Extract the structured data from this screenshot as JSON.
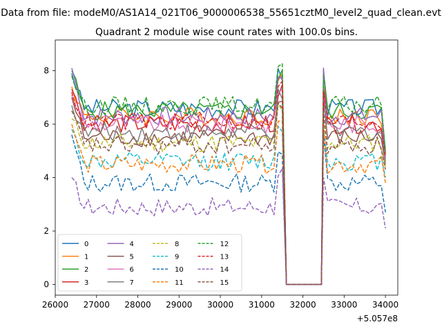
{
  "figure": {
    "suptitle": "Data from file: modeM0/AS1A14_021T06_9000006538_55651cztM0_level2_quad_clean.evt",
    "title": "Quadrant 2 module wise count rates with 100.0s bins.",
    "x_offset_label": "+5.057e8"
  },
  "chart_data": {
    "type": "line",
    "xlim": [
      26000,
      34300
    ],
    "ylim": [
      -0.4,
      9.15
    ],
    "xticks": [
      26000,
      27000,
      28000,
      29000,
      30000,
      31000,
      32000,
      33000,
      34000
    ],
    "yticks": [
      0,
      2,
      4,
      6,
      8
    ],
    "x_offset": 505700000,
    "legend_loc": "lower left",
    "legend_ncol": 4,
    "bin_width": 100,
    "segments": [
      {
        "start": 26400,
        "end": 31500
      },
      {
        "start": 32500,
        "end": 34000
      }
    ],
    "gap_x": [
      31600,
      32450
    ],
    "series": [
      {
        "name": "0",
        "color": "#1f77b4",
        "dash": "solid",
        "level": 6.6,
        "start": 7.9,
        "end": 5.0
      },
      {
        "name": "1",
        "color": "#ff7f0e",
        "dash": "solid",
        "level": 6.3,
        "start": 7.4,
        "end": 4.6
      },
      {
        "name": "2",
        "color": "#2ca02c",
        "dash": "solid",
        "level": 6.5,
        "start": 8.0,
        "end": 4.9
      },
      {
        "name": "3",
        "color": "#d62728",
        "dash": "solid",
        "level": 6.0,
        "start": 7.3,
        "end": 4.8
      },
      {
        "name": "4",
        "color": "#9467bd",
        "dash": "solid",
        "level": 6.3,
        "start": 8.1,
        "end": 4.7
      },
      {
        "name": "5",
        "color": "#8c564b",
        "dash": "solid",
        "level": 5.5,
        "start": 7.0,
        "end": 4.5
      },
      {
        "name": "6",
        "color": "#e377c2",
        "dash": "solid",
        "level": 6.0,
        "start": 7.1,
        "end": 4.7
      },
      {
        "name": "7",
        "color": "#7f7f7f",
        "dash": "solid",
        "level": 5.7,
        "start": 6.7,
        "end": 4.5
      },
      {
        "name": "8",
        "color": "#bcbd22",
        "dash": "dashed",
        "level": 5.3,
        "start": 6.2,
        "end": 4.4
      },
      {
        "name": "9",
        "color": "#17becf",
        "dash": "dashed",
        "level": 4.6,
        "start": 5.8,
        "end": 4.0
      },
      {
        "name": "10",
        "color": "#1f77b4",
        "dash": "dashed",
        "level": 3.8,
        "start": 5.6,
        "end": 2.7
      },
      {
        "name": "11",
        "color": "#ff7f0e",
        "dash": "dashed",
        "level": 4.5,
        "start": 6.0,
        "end": 3.8
      },
      {
        "name": "12",
        "color": "#2ca02c",
        "dash": "dashed",
        "level": 6.7,
        "start": 7.8,
        "end": 5.0
      },
      {
        "name": "13",
        "color": "#d62728",
        "dash": "dashed",
        "level": 6.1,
        "start": 7.2,
        "end": 4.8
      },
      {
        "name": "14",
        "color": "#9467bd",
        "dash": "dashed",
        "level": 2.9,
        "start": 4.0,
        "end": 2.1
      },
      {
        "name": "15",
        "color": "#8c564b",
        "dash": "dashed",
        "level": 5.2,
        "start": 6.5,
        "end": 4.3
      }
    ]
  }
}
